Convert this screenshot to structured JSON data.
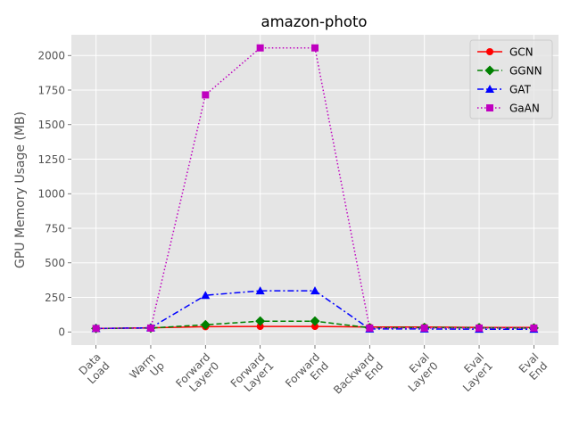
{
  "chart_data": {
    "type": "line",
    "title": "amazon-photo",
    "xlabel": "",
    "ylabel": "GPU Memory Usage (MB)",
    "categories": [
      [
        "Data",
        "Load"
      ],
      [
        "Warm",
        "Up"
      ],
      [
        "Forward",
        "Layer0"
      ],
      [
        "Forward",
        "Layer1"
      ],
      [
        "Forward",
        "End"
      ],
      [
        "Backward",
        "End"
      ],
      [
        "Eval",
        "Layer0"
      ],
      [
        "Eval",
        "Layer1"
      ],
      [
        "Eval",
        "End"
      ]
    ],
    "ylim": [
      -95,
      2150
    ],
    "yticks": [
      0,
      250,
      500,
      750,
      1000,
      1250,
      1500,
      1750,
      2000
    ],
    "ytick_labels": [
      "0",
      "250",
      "500",
      "750",
      "1000",
      "1250",
      "1500",
      "1750",
      "2000"
    ],
    "grid": true,
    "legend_position": "top-right",
    "series": [
      {
        "name": "GCN",
        "color": "#ff0000",
        "marker": "circle",
        "linestyle": "solid",
        "values": [
          25,
          30,
          38,
          40,
          40,
          35,
          35,
          33,
          32
        ]
      },
      {
        "name": "GGNN",
        "color": "#008000",
        "marker": "diamond",
        "linestyle": "dashed",
        "values": [
          25,
          28,
          52,
          78,
          78,
          30,
          32,
          30,
          28
        ]
      },
      {
        "name": "GAT",
        "color": "#0000ff",
        "marker": "triangle",
        "linestyle": "dashdot",
        "values": [
          25,
          30,
          265,
          298,
          298,
          22,
          22,
          20,
          20
        ]
      },
      {
        "name": "GaAN",
        "color": "#bf00bf",
        "marker": "square",
        "linestyle": "dotted",
        "values": [
          25,
          28,
          1715,
          2055,
          2055,
          28,
          28,
          28,
          28
        ]
      }
    ]
  }
}
